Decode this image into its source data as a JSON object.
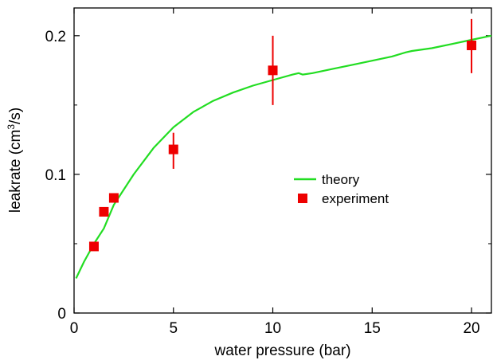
{
  "chart_data": {
    "type": "scatter",
    "title": "",
    "xlabel": "water pressure  (bar)",
    "ylabel": {
      "prefix": "leakrate  (cm",
      "superscript": "3",
      "suffix": "/s)"
    },
    "xlim": [
      0,
      21
    ],
    "ylim": [
      0,
      0.22
    ],
    "x_ticks": [
      0,
      5,
      10,
      15,
      20
    ],
    "x_tick_labels": [
      "0",
      "5",
      "10",
      "15",
      "20"
    ],
    "y_ticks": [
      0,
      0.1,
      0.2
    ],
    "y_tick_labels": [
      "0",
      "0.1",
      "0.2"
    ],
    "y_minor_ticks": [
      0.05,
      0.15
    ],
    "grid": false,
    "legend_position": "center-right",
    "series": [
      {
        "name": "theory",
        "kind": "line",
        "color": "#22dd22",
        "x": [
          0.1,
          0.5,
          1,
          1.5,
          2,
          3,
          4,
          5,
          6,
          7,
          8,
          9,
          10,
          11,
          11.3,
          11.5,
          12,
          13,
          14,
          15,
          16,
          16.7,
          17,
          18,
          19,
          20,
          21
        ],
        "y": [
          0.025,
          0.037,
          0.05,
          0.061,
          0.078,
          0.1,
          0.119,
          0.134,
          0.145,
          0.153,
          0.159,
          0.164,
          0.168,
          0.172,
          0.173,
          0.172,
          0.173,
          0.176,
          0.179,
          0.182,
          0.185,
          0.188,
          0.189,
          0.191,
          0.194,
          0.197,
          0.2
        ]
      },
      {
        "name": "experiment",
        "kind": "scatter",
        "color": "#ee0000",
        "x": [
          1,
          1.5,
          2,
          5,
          10,
          20
        ],
        "y": [
          0.048,
          0.073,
          0.083,
          0.118,
          0.175,
          0.193
        ],
        "err_low": [
          0.048,
          0.073,
          0.083,
          0.104,
          0.15,
          0.173
        ],
        "err_high": [
          0.048,
          0.073,
          0.083,
          0.13,
          0.2,
          0.212
        ]
      }
    ]
  }
}
